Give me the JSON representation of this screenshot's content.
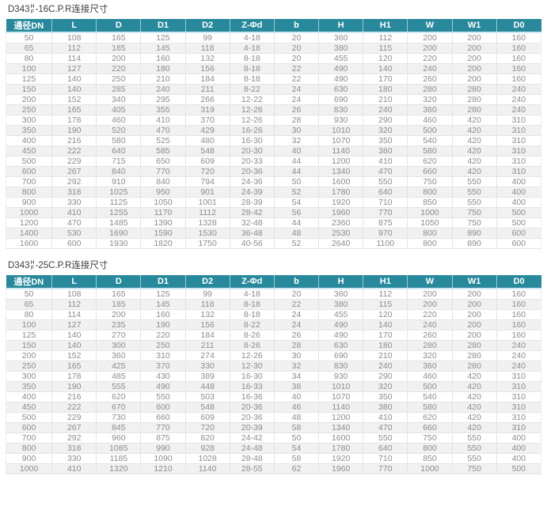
{
  "colors": {
    "header_bg": "#27899b",
    "header_text": "#ffffff",
    "body_text": "#8b8b8b",
    "row_alt": "#f1f1f1",
    "header_underline": "#cfe9f3",
    "title_text": "#3c3c3c"
  },
  "columns": [
    "通径DN",
    "L",
    "D",
    "D1",
    "D2",
    "Z-Φd",
    "b",
    "H",
    "H1",
    "W",
    "W1",
    "D0"
  ],
  "tables": [
    {
      "title_prefix": "D343",
      "title_sup": "H",
      "title_sub": "F",
      "title_suffix": "-16C.P.R连接尺寸",
      "rows": [
        [
          "50",
          "108",
          "165",
          "125",
          "99",
          "4-18",
          "20",
          "360",
          "112",
          "200",
          "200",
          "160"
        ],
        [
          "65",
          "112",
          "185",
          "145",
          "118",
          "4-18",
          "20",
          "380",
          "115",
          "200",
          "200",
          "160"
        ],
        [
          "80",
          "114",
          "200",
          "160",
          "132",
          "8-18",
          "20",
          "455",
          "120",
          "220",
          "200",
          "160"
        ],
        [
          "100",
          "127",
          "220",
          "180",
          "156",
          "8-18",
          "22",
          "490",
          "140",
          "240",
          "200",
          "160"
        ],
        [
          "125",
          "140",
          "250",
          "210",
          "184",
          "8-18",
          "22",
          "490",
          "170",
          "260",
          "200",
          "160"
        ],
        [
          "150",
          "140",
          "285",
          "240",
          "211",
          "8-22",
          "24",
          "630",
          "180",
          "280",
          "280",
          "240"
        ],
        [
          "200",
          "152",
          "340",
          "295",
          "266",
          "12-22",
          "24",
          "690",
          "210",
          "320",
          "280",
          "240"
        ],
        [
          "250",
          "165",
          "405",
          "355",
          "319",
          "12-26",
          "26",
          "830",
          "240",
          "360",
          "280",
          "240"
        ],
        [
          "300",
          "178",
          "460",
          "410",
          "370",
          "12-26",
          "28",
          "930",
          "290",
          "460",
          "420",
          "310"
        ],
        [
          "350",
          "190",
          "520",
          "470",
          "429",
          "16-26",
          "30",
          "1010",
          "320",
          "500",
          "420",
          "310"
        ],
        [
          "400",
          "216",
          "580",
          "525",
          "480",
          "16-30",
          "32",
          "1070",
          "350",
          "540",
          "420",
          "310"
        ],
        [
          "450",
          "222",
          "640",
          "585",
          "548",
          "20-30",
          "40",
          "1140",
          "380",
          "580",
          "420",
          "310"
        ],
        [
          "500",
          "229",
          "715",
          "650",
          "609",
          "20-33",
          "44",
          "1200",
          "410",
          "620",
          "420",
          "310"
        ],
        [
          "600",
          "267",
          "840",
          "770",
          "720",
          "20-36",
          "44",
          "1340",
          "470",
          "660",
          "420",
          "310"
        ],
        [
          "700",
          "292",
          "910",
          "840",
          "794",
          "24-36",
          "50",
          "1600",
          "550",
          "750",
          "550",
          "400"
        ],
        [
          "800",
          "318",
          "1025",
          "950",
          "901",
          "24-39",
          "52",
          "1780",
          "640",
          "800",
          "550",
          "400"
        ],
        [
          "900",
          "330",
          "1125",
          "1050",
          "1001",
          "28-39",
          "54",
          "1920",
          "710",
          "850",
          "550",
          "400"
        ],
        [
          "1000",
          "410",
          "1255",
          "1170",
          "1112",
          "28-42",
          "56",
          "1960",
          "770",
          "1000",
          "750",
          "500"
        ],
        [
          "1200",
          "470",
          "1485",
          "1390",
          "1328",
          "32-48",
          "44",
          "2360",
          "875",
          "1050",
          "750",
          "500"
        ],
        [
          "1400",
          "530",
          "1690",
          "1590",
          "1530",
          "36-48",
          "48",
          "2530",
          "970",
          "800",
          "890",
          "600"
        ],
        [
          "1600",
          "600",
          "1930",
          "1820",
          "1750",
          "40-56",
          "52",
          "2640",
          "1100",
          "800",
          "890",
          "600"
        ]
      ]
    },
    {
      "title_prefix": "D343",
      "title_sup": "H",
      "title_sub": "F",
      "title_suffix": "-25C.P.R连接尺寸",
      "rows": [
        [
          "50",
          "108",
          "165",
          "125",
          "99",
          "4-18",
          "20",
          "360",
          "112",
          "200",
          "200",
          "160"
        ],
        [
          "65",
          "112",
          "185",
          "145",
          "118",
          "8-18",
          "22",
          "380",
          "115",
          "200",
          "200",
          "160"
        ],
        [
          "80",
          "114",
          "200",
          "160",
          "132",
          "8-18",
          "24",
          "455",
          "120",
          "220",
          "200",
          "160"
        ],
        [
          "100",
          "127",
          "235",
          "190",
          "156",
          "8-22",
          "24",
          "490",
          "140",
          "240",
          "200",
          "160"
        ],
        [
          "125",
          "140",
          "270",
          "220",
          "184",
          "8-26",
          "26",
          "490",
          "170",
          "260",
          "200",
          "160"
        ],
        [
          "150",
          "140",
          "300",
          "250",
          "211",
          "8-26",
          "28",
          "630",
          "180",
          "280",
          "280",
          "240"
        ],
        [
          "200",
          "152",
          "360",
          "310",
          "274",
          "12-26",
          "30",
          "690",
          "210",
          "320",
          "280",
          "240"
        ],
        [
          "250",
          "165",
          "425",
          "370",
          "330",
          "12-30",
          "32",
          "830",
          "240",
          "360",
          "280",
          "240"
        ],
        [
          "300",
          "178",
          "485",
          "430",
          "389",
          "16-30",
          "34",
          "930",
          "290",
          "460",
          "420",
          "310"
        ],
        [
          "350",
          "190",
          "555",
          "490",
          "448",
          "16-33",
          "38",
          "1010",
          "320",
          "500",
          "420",
          "310"
        ],
        [
          "400",
          "216",
          "620",
          "550",
          "503",
          "16-36",
          "40",
          "1070",
          "350",
          "540",
          "420",
          "310"
        ],
        [
          "450",
          "222",
          "670",
          "600",
          "548",
          "20-36",
          "46",
          "1140",
          "380",
          "580",
          "420",
          "310"
        ],
        [
          "500",
          "229",
          "730",
          "660",
          "609",
          "20-36",
          "48",
          "1200",
          "410",
          "620",
          "420",
          "310"
        ],
        [
          "600",
          "267",
          "845",
          "770",
          "720",
          "20-39",
          "58",
          "1340",
          "470",
          "660",
          "420",
          "310"
        ],
        [
          "700",
          "292",
          "960",
          "875",
          "820",
          "24-42",
          "50",
          "1600",
          "550",
          "750",
          "550",
          "400"
        ],
        [
          "800",
          "318",
          "1085",
          "990",
          "928",
          "24-48",
          "54",
          "1780",
          "640",
          "800",
          "550",
          "400"
        ],
        [
          "900",
          "330",
          "1185",
          "1090",
          "1028",
          "28-48",
          "58",
          "1920",
          "710",
          "850",
          "550",
          "400"
        ],
        [
          "1000",
          "410",
          "1320",
          "1210",
          "1140",
          "28-55",
          "62",
          "1960",
          "770",
          "1000",
          "750",
          "500"
        ]
      ]
    }
  ]
}
